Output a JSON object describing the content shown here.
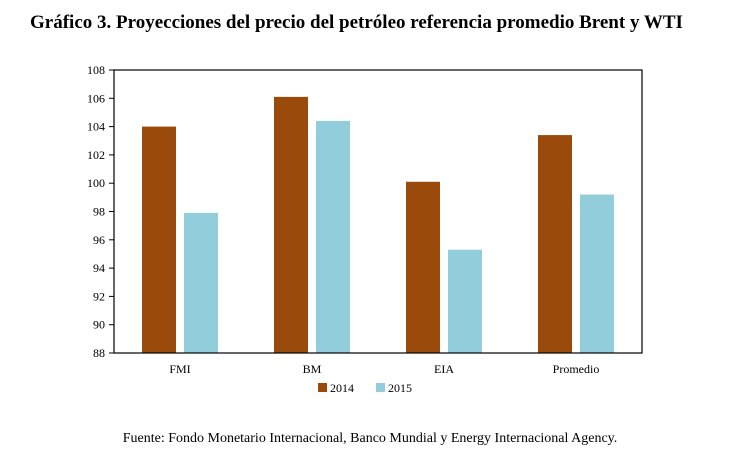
{
  "title": "Gráfico 3. Proyecciones del precio del petróleo referencia promedio Brent y WTI",
  "source": "Fuente: Fondo Monetario Internacional, Banco Mundial y Energy Internacional Agency.",
  "chart_data": {
    "type": "bar",
    "categories": [
      "FMI",
      "BM",
      "EIA",
      "Promedio"
    ],
    "series": [
      {
        "name": "2014",
        "color": "#9a4a0a",
        "values": [
          104.0,
          106.1,
          100.1,
          103.4
        ]
      },
      {
        "name": "2015",
        "color": "#92cddc",
        "values": [
          97.9,
          104.4,
          95.3,
          99.2
        ]
      }
    ],
    "ylim": [
      88,
      108
    ],
    "yticks": [
      "108",
      "106",
      "104",
      "102",
      "100",
      "98",
      "96",
      "94",
      "92",
      "90",
      "88"
    ],
    "grid": false,
    "legend": "bottom"
  }
}
